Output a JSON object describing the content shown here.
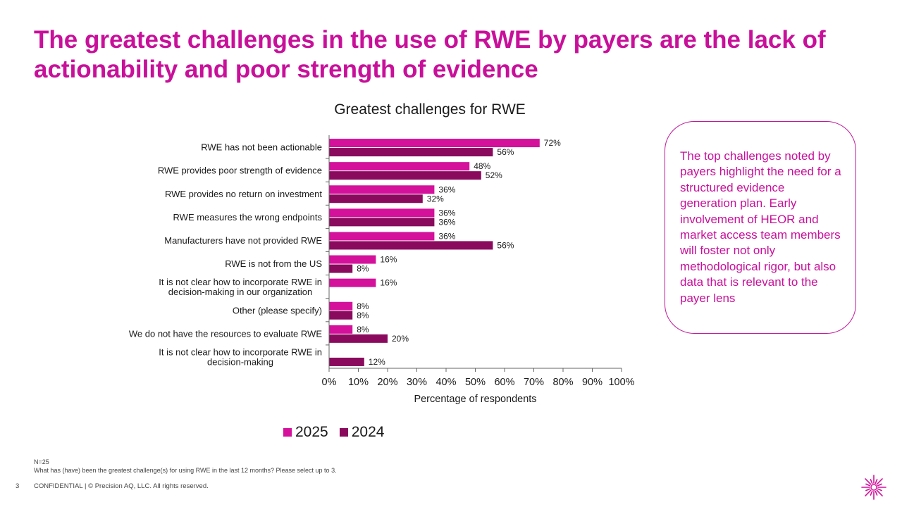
{
  "slide": {
    "title": "The greatest challenges in the use of RWE by payers are the lack of actionability and poor strength of evidence",
    "callout": "The top challenges noted by payers highlight the need for a structured evidence generation plan. Early involvement of HEOR and market access team members will foster not only methodological rigor, but also data that is relevant to the payer lens",
    "footnote_n": "N=25",
    "footnote_question": "What has (have) been the greatest challenge(s) for using RWE in the last 12 months? Please select up to 3.",
    "page_number": "3",
    "footer_text": "CONFIDENTIAL | © Precision AQ, LLC. All rights reserved."
  },
  "colors": {
    "title": "#c8109a",
    "series_2025": "#d4119b",
    "series_2024": "#8a0a5e"
  },
  "icons": {
    "logo": "starburst-logo-icon"
  },
  "chart_data": {
    "type": "bar",
    "orientation": "horizontal",
    "title": "Greatest challenges for RWE",
    "xlabel": "Percentage of respondents",
    "ylabel": "",
    "xlim": [
      0,
      100
    ],
    "x_ticks": [
      "0%",
      "10%",
      "20%",
      "30%",
      "40%",
      "50%",
      "60%",
      "70%",
      "80%",
      "90%",
      "100%"
    ],
    "grid": false,
    "legend_position": "bottom",
    "categories": [
      "RWE has not been actionable",
      "RWE provides poor strength of evidence",
      "RWE provides no return on investment",
      "RWE measures the wrong endpoints",
      "Manufacturers have not provided RWE",
      "RWE is not from the US",
      "It is not clear how to incorporate RWE in decision-making in our organization",
      "Other (please specify)",
      "We do not have the resources to evaluate RWE",
      "It is not clear how to incorporate RWE in decision-making"
    ],
    "series": [
      {
        "name": "2025",
        "values": [
          72,
          48,
          36,
          36,
          36,
          16,
          16,
          8,
          8,
          null
        ]
      },
      {
        "name": "2024",
        "values": [
          56,
          52,
          32,
          36,
          56,
          8,
          null,
          8,
          20,
          12
        ]
      }
    ]
  }
}
